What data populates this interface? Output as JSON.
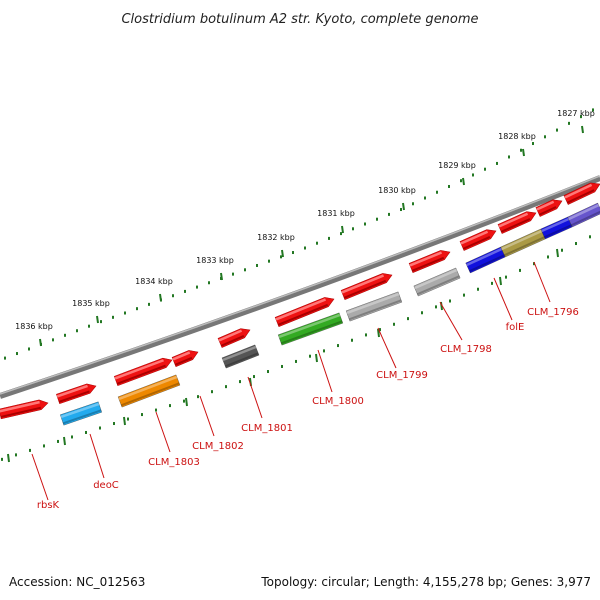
{
  "title": "Clostridium botulinum A2 str. Kyoto, complete genome",
  "footer": {
    "accession": "Accession: NC_012563",
    "topology": "Topology: circular; Length: 4,155,278 bp; Genes: 3,977"
  },
  "axis": {
    "tick_labels": [
      "1827 kbp",
      "1828 kbp",
      "1829 kbp",
      "1830 kbp",
      "1831 kbp",
      "1832 kbp",
      "1833 kbp",
      "1834 kbp",
      "1835 kbp",
      "1836 kbp"
    ]
  },
  "colors": {
    "forward_gene": "#ee1111",
    "reverse_cyan": "#22aaee",
    "reverse_orange": "#ee8800",
    "reverse_darkgray": "#555555",
    "reverse_green": "#33aa22",
    "reverse_lightgray": "#aaaaaa",
    "reverse_blue": "#1111dd",
    "reverse_khaki": "#aa9944",
    "reverse_slate": "#6655cc",
    "backbone": "#888888",
    "ticks": "#227722",
    "label": "#cc1111"
  },
  "gene_labels": [
    "rbsK",
    "deoC",
    "CLM_1803",
    "CLM_1802",
    "CLM_1801",
    "CLM_1800",
    "CLM_1799",
    "CLM_1798",
    "folE",
    "CLM_1796"
  ]
}
